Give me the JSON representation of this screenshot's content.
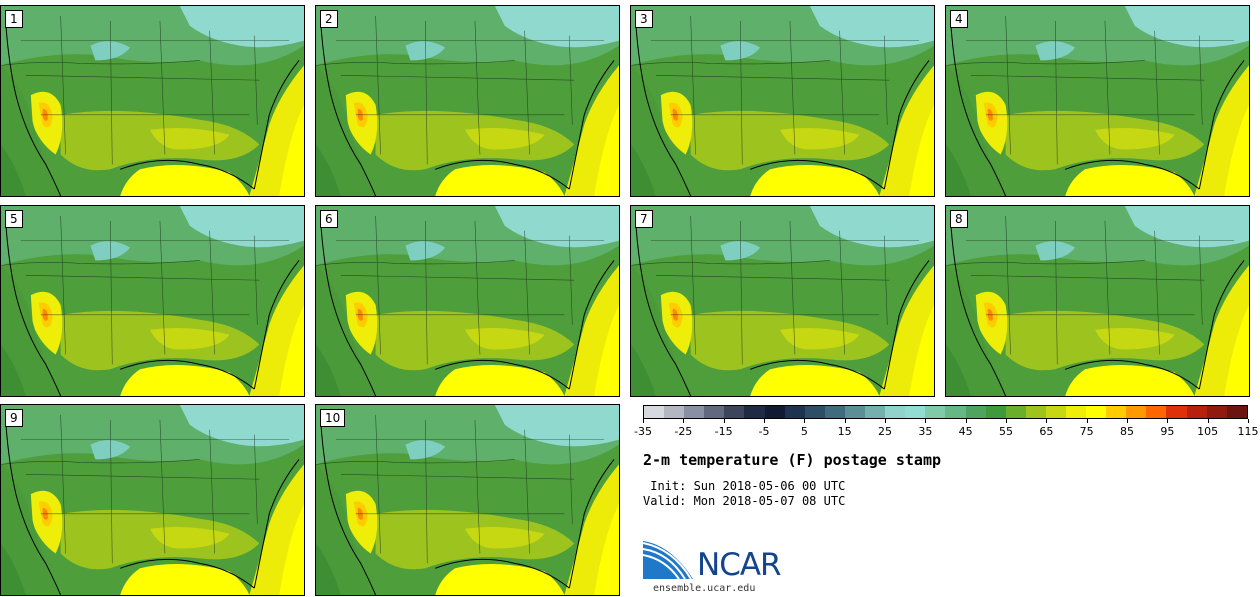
{
  "panels": [
    {
      "label": "1"
    },
    {
      "label": "2"
    },
    {
      "label": "3"
    },
    {
      "label": "4"
    },
    {
      "label": "5"
    },
    {
      "label": "6"
    },
    {
      "label": "7"
    },
    {
      "label": "8"
    },
    {
      "label": "9"
    },
    {
      "label": "10"
    }
  ],
  "legend": {
    "colors": [
      "#d6d9de",
      "#b2b7c2",
      "#8a90a3",
      "#62697f",
      "#3d455c",
      "#1f2a44",
      "#101a33",
      "#1e3350",
      "#2e4e66",
      "#3f6b7c",
      "#5a8f96",
      "#74b0ae",
      "#8fd3cc",
      "#91ddd4",
      "#7fcaa9",
      "#65b784",
      "#4fa35e",
      "#3e9a3b",
      "#6aae2c",
      "#9ec41c",
      "#c7d812",
      "#eeee08",
      "#ffff00",
      "#ffcc00",
      "#ff9900",
      "#ff6600",
      "#e0300a",
      "#b8200e",
      "#8e1a10",
      "#6a1510"
    ],
    "ticks": [
      "-35",
      "-25",
      "-15",
      "-5",
      "5",
      "15",
      "25",
      "35",
      "45",
      "55",
      "65",
      "75",
      "85",
      "95",
      "105",
      "115"
    ]
  },
  "title": "2-m temperature (F) postage stamp",
  "init": " Init: Sun 2018-05-06 00 UTC",
  "valid": "Valid: Mon 2018-05-07 08 UTC",
  "logo": {
    "text": "NCAR",
    "color": "#14458c"
  },
  "url": "ensemble.ucar.edu"
}
